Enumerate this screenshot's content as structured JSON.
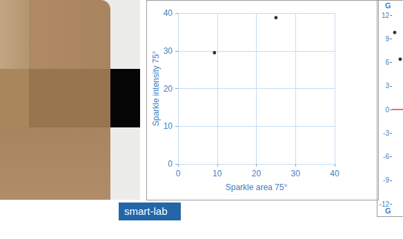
{
  "chart_data": [
    {
      "type": "scatter",
      "x": [
        9.3,
        25
      ],
      "values": [
        29.5,
        38.8
      ],
      "color": "#000000",
      "xlabel": "Sparkle area 75°",
      "ylabel": "Sparkle intensity 75°",
      "xlim": [
        0,
        40
      ],
      "xticks": [
        0,
        10,
        20,
        30,
        40
      ],
      "ylim": [
        0,
        40
      ],
      "yticks": [
        0,
        10,
        20,
        30,
        40
      ],
      "grid": true
    },
    {
      "type": "scatter",
      "categories": [
        null,
        null
      ],
      "values": [
        9.8,
        6.4
      ],
      "color": "#000000",
      "ylabel_top": "G",
      "ylabel_bottom": "G",
      "reference_line": 0,
      "reference_color": "#e53935",
      "ylim": [
        -12,
        12
      ],
      "yticks": [
        -12,
        -9,
        -6,
        -3,
        0,
        3,
        6,
        9,
        12
      ],
      "grid": false,
      "tick_labels": "y"
    }
  ],
  "badge": "smart-lab"
}
